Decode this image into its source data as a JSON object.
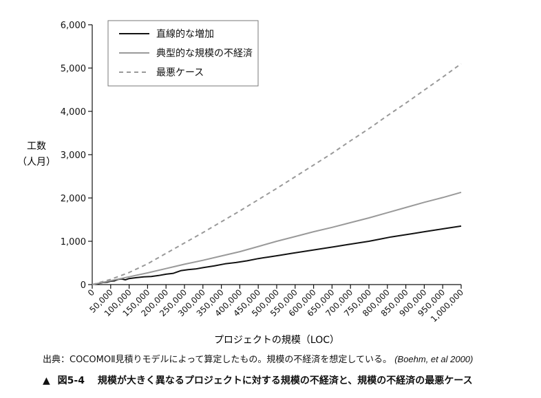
{
  "chart_data": {
    "type": "line",
    "ylabel_line1": "工数",
    "ylabel_line2": "（人月）",
    "xlabel": "プロジェクトの規模（LOC）",
    "xlim": [
      0,
      1000000
    ],
    "ylim": [
      0,
      6000
    ],
    "x_ticks": [
      0,
      50000,
      100000,
      150000,
      200000,
      250000,
      300000,
      350000,
      400000,
      450000,
      500000,
      550000,
      600000,
      650000,
      700000,
      750000,
      800000,
      850000,
      900000,
      950000,
      1000000
    ],
    "x_tick_labels": [
      "0",
      "50,000",
      "100,000",
      "150,000",
      "200,000",
      "250,000",
      "300,000",
      "350,000",
      "400,000",
      "450,000",
      "500,000",
      "550,000",
      "600,000",
      "650,000",
      "700,000",
      "750,000",
      "800,000",
      "850,000",
      "900,000",
      "950,000",
      "1,000,000"
    ],
    "y_ticks": [
      0,
      1000,
      2000,
      3000,
      4000,
      5000,
      6000
    ],
    "y_tick_labels": [
      "0",
      "1,000",
      "2,000",
      "3,000",
      "4,000",
      "5,000",
      "6,000"
    ],
    "legend_position": "top-left",
    "series": [
      {
        "name": "直線的な増加",
        "color": "#111111",
        "dash": "solid",
        "x": [
          10000,
          20000,
          30000,
          40000,
          50000,
          60000,
          70000,
          80000,
          90000,
          100000,
          120000,
          140000,
          160000,
          180000,
          200000,
          220000,
          240000,
          260000,
          280000,
          300000,
          330000,
          360000,
          390000,
          420000,
          450000,
          480000,
          510000,
          540000,
          570000,
          600000,
          630000,
          660000,
          690000,
          720000,
          750000,
          780000,
          810000,
          840000,
          870000,
          900000,
          930000,
          960000,
          1000000
        ],
        "y": [
          10,
          30,
          50,
          55,
          80,
          85,
          120,
          130,
          110,
          140,
          160,
          180,
          185,
          210,
          240,
          260,
          320,
          345,
          360,
          390,
          430,
          480,
          510,
          550,
          600,
          640,
          680,
          720,
          760,
          800,
          840,
          880,
          920,
          960,
          1000,
          1050,
          1100,
          1140,
          1180,
          1220,
          1260,
          1300,
          1350
        ]
      },
      {
        "name": "典型的な規模の不経済",
        "color": "#999999",
        "dash": "solid",
        "x": [
          0,
          50000,
          100000,
          150000,
          200000,
          250000,
          300000,
          350000,
          400000,
          450000,
          500000,
          550000,
          600000,
          650000,
          700000,
          750000,
          800000,
          850000,
          900000,
          950000,
          1000000
        ],
        "y": [
          0,
          90,
          180,
          270,
          370,
          470,
          560,
          660,
          760,
          880,
          1000,
          1110,
          1220,
          1320,
          1430,
          1540,
          1660,
          1780,
          1900,
          2010,
          2130
        ]
      },
      {
        "name": "最悪ケース",
        "color": "#999999",
        "dash": "dashed",
        "x": [
          0,
          50000,
          100000,
          150000,
          200000,
          250000,
          300000,
          350000,
          400000,
          450000,
          500000,
          550000,
          600000,
          650000,
          700000,
          750000,
          800000,
          850000,
          900000,
          950000,
          1000000
        ],
        "y": [
          0,
          120,
          280,
          480,
          720,
          960,
          1200,
          1450,
          1700,
          1960,
          2220,
          2490,
          2760,
          3030,
          3320,
          3600,
          3900,
          4190,
          4490,
          4790,
          5100
        ]
      }
    ]
  },
  "source": {
    "text": "出典：COCOMOⅡ見積りモデルによって算定したもの。規模の不経済を想定している。",
    "citation": "(Boehm, et al 2000)"
  },
  "caption": {
    "marker": "▲",
    "number": "図5-4",
    "text": "規模が大きく異なるプロジェクトに対する規模の不経済と、規模の不経済の最悪ケース"
  }
}
